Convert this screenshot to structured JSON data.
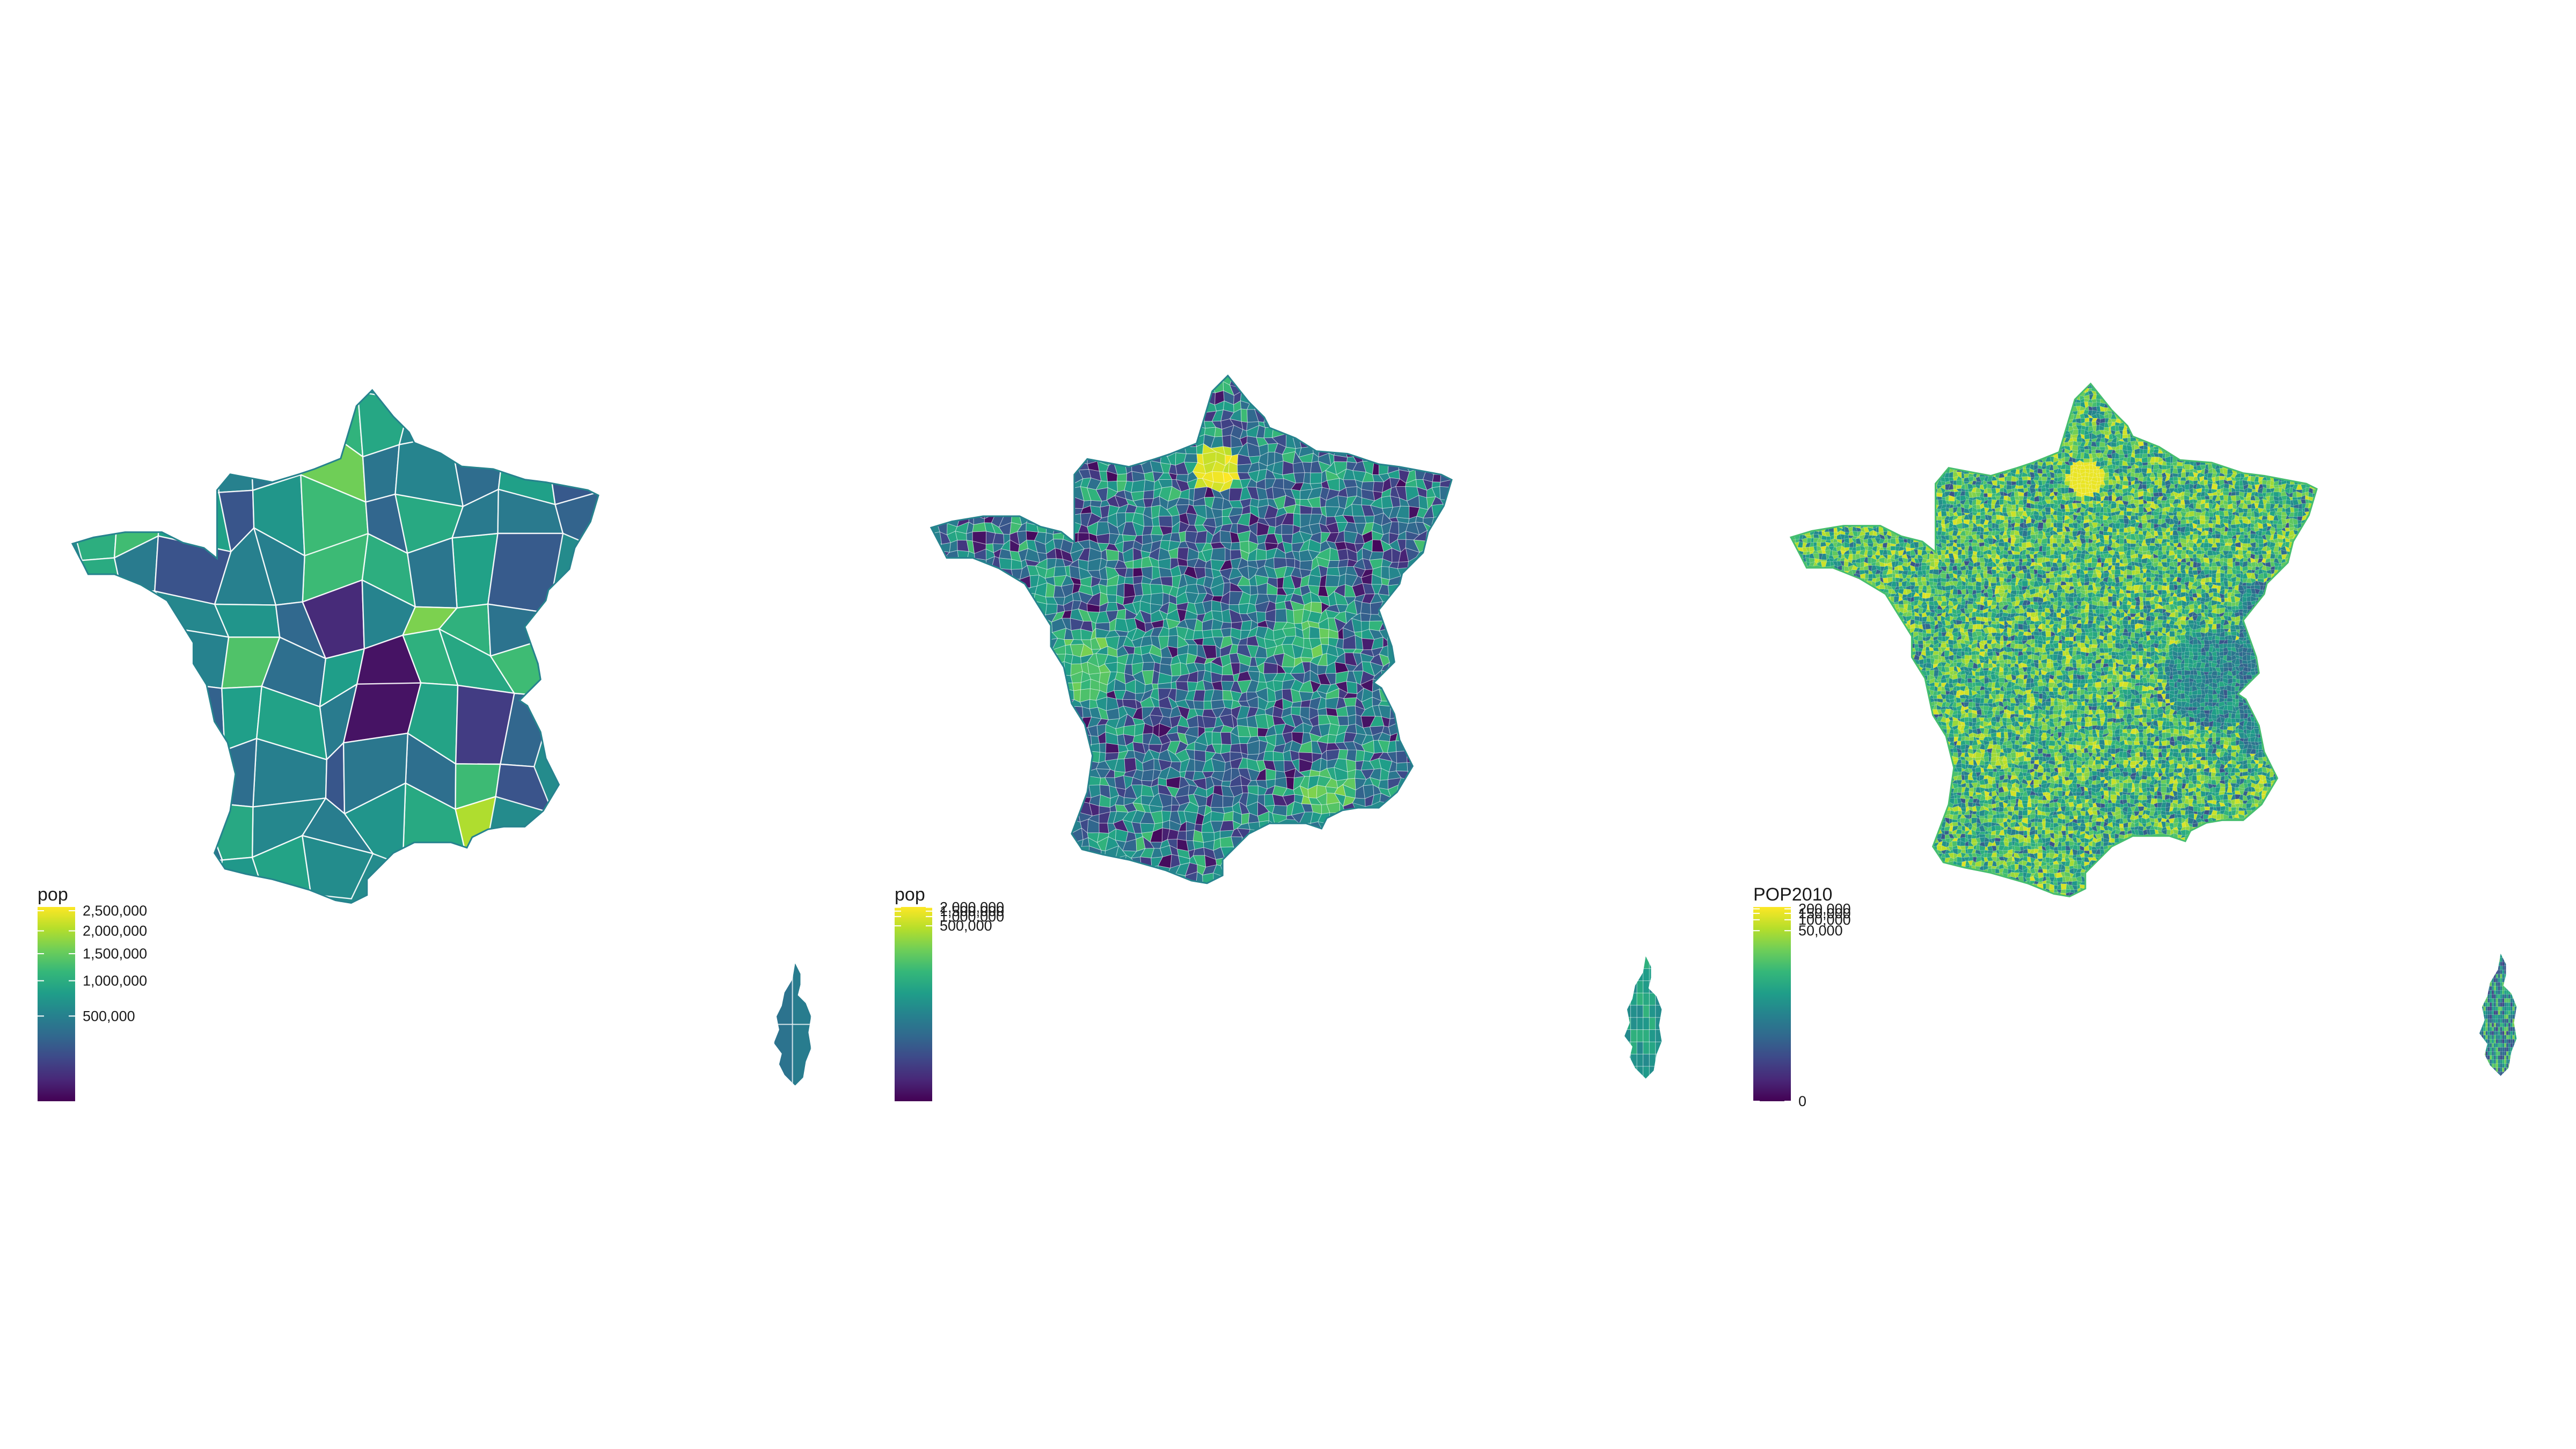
{
  "palette": {
    "viridis": [
      "#440154",
      "#482878",
      "#3e4989",
      "#31688e",
      "#26828e",
      "#1f9e89",
      "#35b779",
      "#6ece58",
      "#b5de2b",
      "#fde725"
    ],
    "background": "#ffffff",
    "border": "#ffffff"
  },
  "maps": [
    {
      "id": "departments",
      "legend": {
        "title": "pop",
        "min": 0,
        "max": 2600000,
        "scale": "sqrt",
        "ticks": [
          {
            "value": 500000,
            "label": "500,000"
          },
          {
            "value": 1000000,
            "label": "1,000,000"
          },
          {
            "value": 1500000,
            "label": "1,500,000"
          },
          {
            "value": 2000000,
            "label": "2,000,000"
          },
          {
            "value": 2500000,
            "label": "2,500,000"
          }
        ]
      }
    },
    {
      "id": "cantons",
      "legend": {
        "title": "pop",
        "min": 0,
        "max": 2050000,
        "scale": "log",
        "ticks": [
          {
            "value": 500000,
            "label": "500,000"
          },
          {
            "value": 1000000,
            "label": "1,000,000"
          },
          {
            "value": 1500000,
            "label": "1,500,000"
          },
          {
            "value": 2000000,
            "label": "2,000,000"
          }
        ]
      }
    },
    {
      "id": "communes",
      "legend": {
        "title": "POP2010",
        "min": 0,
        "max": 225000,
        "scale": "log",
        "ticks": [
          {
            "value": 0,
            "label": "0"
          },
          {
            "value": 50000,
            "label": "50,000"
          },
          {
            "value": 100000,
            "label": "100,000"
          },
          {
            "value": 150000,
            "label": "150,000"
          },
          {
            "value": 200000,
            "label": "200,000"
          }
        ]
      }
    }
  ]
}
